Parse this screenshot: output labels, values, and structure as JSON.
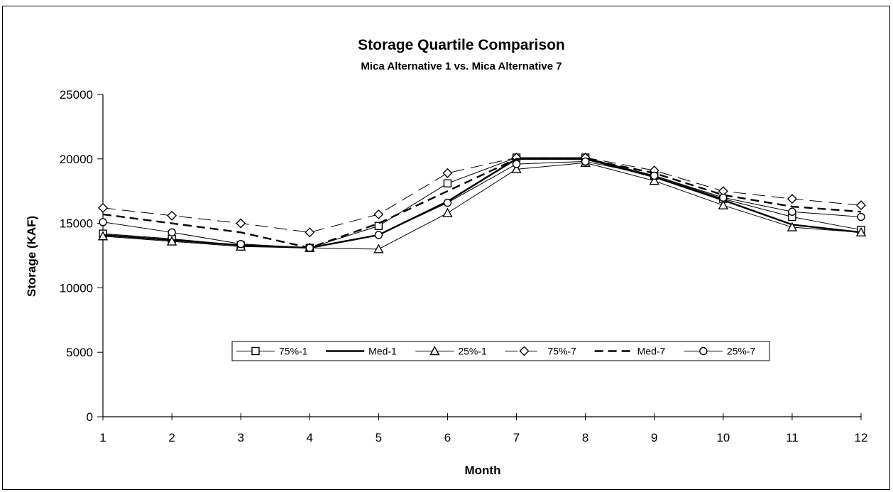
{
  "chart_data": {
    "type": "line",
    "title": "Storage Quartile Comparison",
    "subtitle": "Mica Alternative 1 vs. Mica Alternative 7",
    "xlabel": "Month",
    "ylabel": "Storage (KAF)",
    "x": [
      1,
      2,
      3,
      4,
      5,
      6,
      7,
      8,
      9,
      10,
      11,
      12
    ],
    "ylim": [
      0,
      25000
    ],
    "yticks": [
      0,
      5000,
      10000,
      15000,
      20000,
      25000
    ],
    "grid": false,
    "legend": "inside, lower center",
    "series": [
      {
        "name": "75%-1",
        "marker": "square",
        "dash": "solid",
        "weight": "thin",
        "values": [
          14200,
          13800,
          13300,
          13100,
          14800,
          18100,
          20100,
          20100,
          18700,
          16900,
          15500,
          14500
        ]
      },
      {
        "name": "Med-1",
        "marker": "none",
        "dash": "solid",
        "weight": "bold",
        "values": [
          14100,
          13700,
          13300,
          13100,
          14100,
          16700,
          20000,
          20000,
          18600,
          16800,
          14900,
          14300
        ]
      },
      {
        "name": "25%-1",
        "marker": "triangle",
        "dash": "solid",
        "weight": "thin",
        "values": [
          14000,
          13600,
          13200,
          13100,
          13000,
          15800,
          19200,
          19700,
          18300,
          16400,
          14700,
          14300
        ]
      },
      {
        "name": "75%-7",
        "marker": "diamond",
        "dash": "long-dash",
        "weight": "thin",
        "values": [
          16200,
          15600,
          15000,
          14300,
          15700,
          18900,
          20100,
          20100,
          19100,
          17500,
          16900,
          16400
        ]
      },
      {
        "name": "Med-7",
        "marker": "none",
        "dash": "dash",
        "weight": "bold",
        "values": [
          15700,
          15000,
          14300,
          13100,
          15000,
          17500,
          20000,
          20000,
          18900,
          17200,
          16300,
          15900
        ]
      },
      {
        "name": "25%-7",
        "marker": "circle",
        "dash": "solid",
        "weight": "thin",
        "values": [
          15100,
          14300,
          13400,
          13100,
          14100,
          16600,
          19600,
          19800,
          18700,
          17000,
          15900,
          15500
        ]
      }
    ]
  }
}
